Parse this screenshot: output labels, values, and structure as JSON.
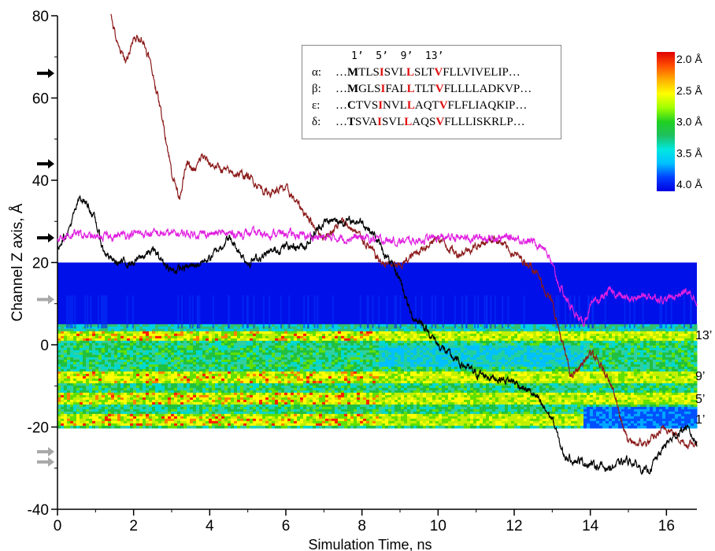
{
  "chart_data": {
    "type": "line",
    "xlabel": "Simulation Time, ns",
    "ylabel": "Channel Z axis, Å",
    "xlim": [
      0,
      16.8
    ],
    "ylim": [
      -40,
      80
    ],
    "x_ticks": [
      "0",
      "2",
      "4",
      "6",
      "8",
      "10",
      "12",
      "14",
      "16"
    ],
    "y_ticks": [
      "-40",
      "-20",
      "0",
      "20",
      "40",
      "60",
      "80"
    ],
    "series": [
      {
        "color": "#8b1a1a",
        "x": [
          1.4,
          1.6,
          1.8,
          2.0,
          2.2,
          2.4,
          2.6,
          2.8,
          3.0,
          3.2,
          3.4,
          3.6,
          3.8,
          4.0,
          4.5,
          5.0,
          5.5,
          6.0,
          6.5,
          7.0,
          7.5,
          8.0,
          8.5,
          9.0,
          9.5,
          10.0,
          10.5,
          11.0,
          11.5,
          12.0,
          12.5,
          13.0,
          13.5,
          14.0,
          14.5,
          15.0,
          15.5,
          16.0,
          16.5,
          16.8
        ],
        "values": [
          80,
          72,
          69,
          74,
          75,
          70,
          62,
          53,
          42,
          36,
          44,
          42,
          46,
          44,
          42,
          41,
          37,
          38,
          32,
          26,
          30,
          26,
          20,
          19,
          23,
          26,
          22,
          24,
          26,
          22,
          19,
          10,
          -8,
          -2,
          -8,
          -24,
          -24,
          -20,
          -24,
          -24
        ]
      },
      {
        "color": "#000000",
        "x": [
          0,
          0.3,
          0.6,
          0.8,
          1.0,
          1.2,
          1.5,
          2.0,
          2.5,
          3.0,
          3.5,
          4.0,
          4.5,
          5.0,
          5.5,
          6.0,
          6.5,
          7.0,
          7.5,
          8.0,
          8.3,
          8.6,
          9.0,
          9.3,
          9.6,
          10.0,
          10.5,
          11.0,
          11.5,
          12.0,
          12.5,
          13.0,
          13.3,
          13.6,
          14.0,
          14.5,
          15.0,
          15.5,
          16.0,
          16.5,
          16.8
        ],
        "values": [
          24,
          28,
          36,
          34,
          30,
          23,
          20,
          20,
          23,
          18,
          19,
          21,
          26,
          20,
          22,
          24,
          24,
          30,
          30,
          30,
          27,
          22,
          16,
          7,
          5,
          0,
          -4,
          -7,
          -8,
          -9,
          -12,
          -18,
          -27,
          -28,
          -29,
          -30,
          -28,
          -31,
          -24,
          -20,
          -24
        ]
      },
      {
        "color": "#e020e0",
        "x": [
          0,
          0.5,
          1.0,
          2.0,
          3.0,
          4.0,
          5.0,
          6.0,
          7.0,
          8.0,
          9.0,
          10.0,
          11.0,
          12.0,
          12.5,
          12.8,
          13.0,
          13.2,
          13.5,
          13.8,
          14.0,
          14.5,
          15.0,
          15.5,
          16.0,
          16.5,
          16.8
        ],
        "values": [
          26,
          27,
          26,
          27,
          27,
          27,
          27,
          27,
          26,
          26,
          25,
          26,
          26,
          26,
          25,
          24,
          19,
          14,
          9,
          5,
          9,
          13,
          11,
          12,
          11,
          13,
          11
        ]
      }
    ],
    "heatmap": {
      "x_range": [
        0,
        16.8
      ],
      "z_range": [
        -20,
        20
      ],
      "bands": [
        {
          "z": 2.5,
          "label": "13’"
        },
        {
          "z": -7.5,
          "label": "9’"
        },
        {
          "z": -13,
          "label": "5’"
        },
        {
          "z": -18,
          "label": "1’"
        }
      ]
    },
    "colorbar": {
      "labels": [
        "2.0 Å",
        "2.5 Å",
        "3.0 Å",
        "3.5 Å",
        "4.0 Å"
      ],
      "colors": [
        "#e00000",
        "#ff5000",
        "#ffb000",
        "#ffff00",
        "#a0ff00",
        "#20d020",
        "#20c060",
        "#00e8e0",
        "#00c0ff",
        "#0040ff",
        "#0000e0"
      ]
    },
    "arrows": {
      "black_z": [
        66,
        44,
        26
      ],
      "gray_z": [
        11,
        -26,
        -28.5
      ]
    },
    "sequences": {
      "positions": "1’  5’  9’  13’",
      "rows": [
        {
          "label": "α:",
          "prefix": "…",
          "cap": "M",
          "s1": "TLS",
          "r1": "I",
          "s2": "SVL",
          "r2": "L",
          "s3": "SLT",
          "r3": "V",
          "s4": "FLLVIVELIP…"
        },
        {
          "label": "β:",
          "prefix": "…",
          "cap": "M",
          "s1": "GLS",
          "r1": "I",
          "s2": "FAL",
          "r2": "L",
          "s3": "TLT",
          "r3": "V",
          "s4": "FLLLLADKVP…"
        },
        {
          "label": "ε:",
          "prefix": "…",
          "cap": "C",
          "s1": "TVS",
          "r1": "I",
          "s2": "NVL",
          "r2": "L",
          "s3": "AQT",
          "r3": "V",
          "s4": "FLFLIAQKIP…"
        },
        {
          "label": "δ:",
          "prefix": "…",
          "cap": "T",
          "s1": "SVA",
          "r1": "I",
          "s2": "SVL",
          "r2": "L",
          "s3": "AQS",
          "r3": "V",
          "s4": "FLLLISKRLP…"
        }
      ]
    }
  }
}
